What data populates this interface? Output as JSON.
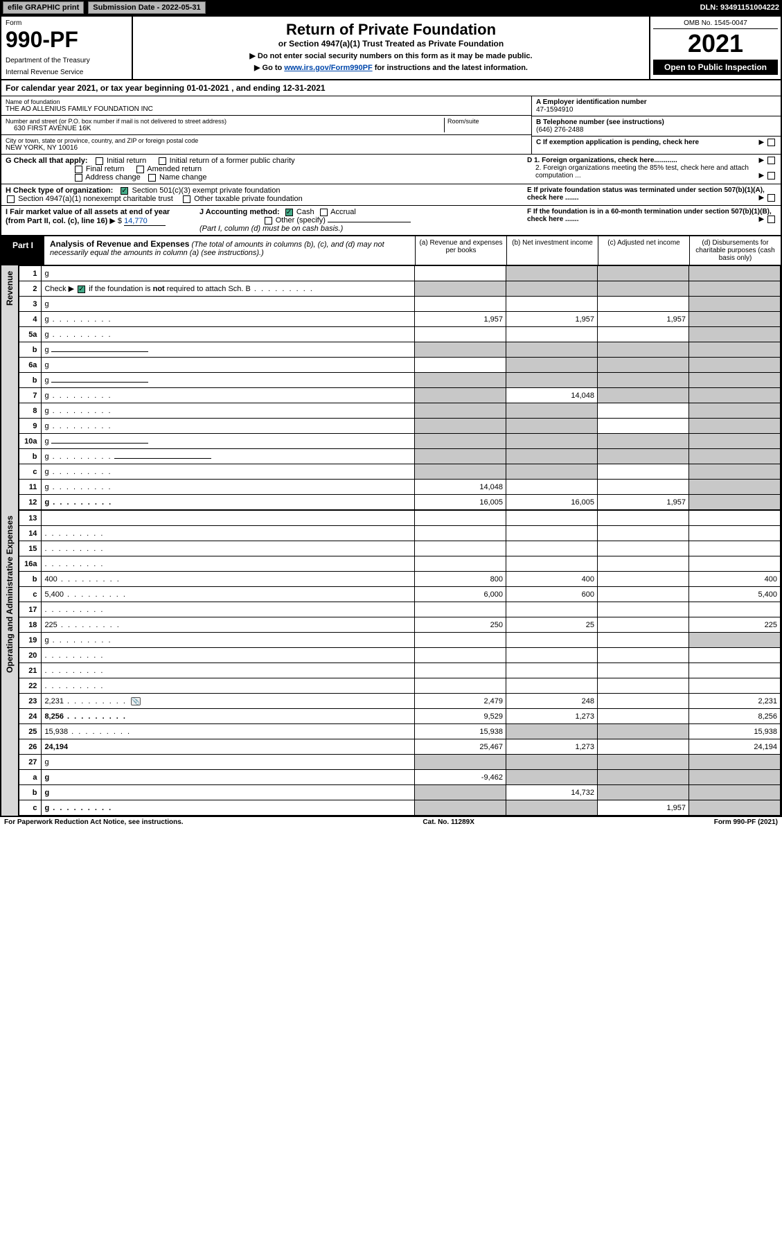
{
  "topbar": {
    "efile": "efile GRAPHIC print",
    "submission_label": "Submission Date - 2022-05-31",
    "dln": "DLN: 93491151004222"
  },
  "header": {
    "form_label": "Form",
    "form_number": "990-PF",
    "dept1": "Department of the Treasury",
    "dept2": "Internal Revenue Service",
    "title": "Return of Private Foundation",
    "subtitle": "or Section 4947(a)(1) Trust Treated as Private Foundation",
    "instr1": "▶ Do not enter social security numbers on this form as it may be made public.",
    "instr2_pre": "▶ Go to ",
    "instr2_link": "www.irs.gov/Form990PF",
    "instr2_post": " for instructions and the latest information.",
    "omb": "OMB No. 1545-0047",
    "year": "2021",
    "open": "Open to Public Inspection"
  },
  "cal_year": {
    "text_pre": "For calendar year 2021, or tax year beginning ",
    "begin": "01-01-2021",
    "mid": " , and ending ",
    "end": "12-31-2021"
  },
  "info": {
    "name_lbl": "Name of foundation",
    "name_val": "THE AO ALLENIUS FAMILY FOUNDATION INC",
    "addr_lbl": "Number and street (or P.O. box number if mail is not delivered to street address)",
    "addr_val": "630 FIRST AVENUE 16K",
    "room_lbl": "Room/suite",
    "city_lbl": "City or town, state or province, country, and ZIP or foreign postal code",
    "city_val": "NEW YORK, NY  10016",
    "a_title": "A Employer identification number",
    "a_val": "47-1594910",
    "b_title": "B Telephone number (see instructions)",
    "b_val": "(646) 276-2488",
    "c_title": "C If exemption application is pending, check here",
    "d1": "D 1. Foreign organizations, check here............",
    "d2": "2. Foreign organizations meeting the 85% test, check here and attach computation ...",
    "e": "E  If private foundation status was terminated under section 507(b)(1)(A), check here .......",
    "f": "F  If the foundation is in a 60-month termination under section 507(b)(1)(B), check here .......",
    "g_label": "G Check all that apply:",
    "g_opts": [
      "Initial return",
      "Initial return of a former public charity",
      "Final return",
      "Amended return",
      "Address change",
      "Name change"
    ],
    "h_label": "H Check type of organization:",
    "h_opt1": "Section 501(c)(3) exempt private foundation",
    "h_opt2": "Section 4947(a)(1) nonexempt charitable trust",
    "h_opt3": "Other taxable private foundation",
    "i_label": "I Fair market value of all assets at end of year (from Part II, col. (c), line 16)",
    "i_val": "14,770",
    "j_label": "J Accounting method:",
    "j_opts": [
      "Cash",
      "Accrual",
      "Other (specify)"
    ],
    "j_note": "(Part I, column (d) must be on cash basis.)"
  },
  "part1": {
    "label": "Part I",
    "title": "Analysis of Revenue and Expenses",
    "title_note": " (The total of amounts in columns (b), (c), and (d) may not necessarily equal the amounts in column (a) (see instructions).)",
    "col_a": "(a)   Revenue and expenses per books",
    "col_b": "(b)  Net investment income",
    "col_c": "(c)  Adjusted net income",
    "col_d": "(d)  Disbursements for charitable purposes (cash basis only)"
  },
  "side": {
    "revenue": "Revenue",
    "expenses": "Operating and Administrative Expenses"
  },
  "rows": [
    {
      "n": "1",
      "d": "g",
      "a": "",
      "b": "g",
      "c": "g"
    },
    {
      "n": "2",
      "d": "g",
      "dots": true,
      "a": "g",
      "b": "g",
      "c": "g",
      "checked": true
    },
    {
      "n": "3",
      "d": "g",
      "a": "",
      "b": "",
      "c": ""
    },
    {
      "n": "4",
      "d": "g",
      "dots": true,
      "a": "1,957",
      "b": "1,957",
      "c": "1,957"
    },
    {
      "n": "5a",
      "d": "g",
      "dots": true,
      "a": "",
      "b": "",
      "c": ""
    },
    {
      "n": "b",
      "d": "g",
      "underline": true,
      "a": "g",
      "b": "g",
      "c": "g"
    },
    {
      "n": "6a",
      "d": "g",
      "a": "",
      "b": "g",
      "c": "g"
    },
    {
      "n": "b",
      "d": "g",
      "underline": true,
      "a": "g",
      "b": "g",
      "c": "g"
    },
    {
      "n": "7",
      "d": "g",
      "dots": true,
      "a": "g",
      "b": "14,048",
      "c": "g"
    },
    {
      "n": "8",
      "d": "g",
      "dots": true,
      "a": "g",
      "b": "g",
      "c": ""
    },
    {
      "n": "9",
      "d": "g",
      "dots": true,
      "a": "g",
      "b": "g",
      "c": ""
    },
    {
      "n": "10a",
      "d": "g",
      "underline": true,
      "a": "g",
      "b": "g",
      "c": "g"
    },
    {
      "n": "b",
      "d": "g",
      "dots": true,
      "underline": true,
      "a": "g",
      "b": "g",
      "c": "g"
    },
    {
      "n": "c",
      "d": "g",
      "dots": true,
      "a": "g",
      "b": "g",
      "c": ""
    },
    {
      "n": "11",
      "d": "g",
      "dots": true,
      "a": "14,048",
      "b": "",
      "c": ""
    },
    {
      "n": "12",
      "d": "g",
      "dots": true,
      "bold": true,
      "a": "16,005",
      "b": "16,005",
      "c": "1,957"
    }
  ],
  "exp_rows": [
    {
      "n": "13",
      "d": "",
      "a": "",
      "b": "",
      "c": ""
    },
    {
      "n": "14",
      "d": "",
      "dots": true,
      "a": "",
      "b": "",
      "c": ""
    },
    {
      "n": "15",
      "d": "",
      "dots": true,
      "a": "",
      "b": "",
      "c": ""
    },
    {
      "n": "16a",
      "d": "",
      "dots": true,
      "a": "",
      "b": "",
      "c": ""
    },
    {
      "n": "b",
      "d": "400",
      "dots": true,
      "a": "800",
      "b": "400",
      "c": ""
    },
    {
      "n": "c",
      "d": "5,400",
      "dots": true,
      "a": "6,000",
      "b": "600",
      "c": ""
    },
    {
      "n": "17",
      "d": "",
      "dots": true,
      "a": "",
      "b": "",
      "c": ""
    },
    {
      "n": "18",
      "d": "225",
      "dots": true,
      "a": "250",
      "b": "25",
      "c": ""
    },
    {
      "n": "19",
      "d": "g",
      "dots": true,
      "a": "",
      "b": "",
      "c": ""
    },
    {
      "n": "20",
      "d": "",
      "dots": true,
      "a": "",
      "b": "",
      "c": ""
    },
    {
      "n": "21",
      "d": "",
      "dots": true,
      "a": "",
      "b": "",
      "c": ""
    },
    {
      "n": "22",
      "d": "",
      "dots": true,
      "a": "",
      "b": "",
      "c": ""
    },
    {
      "n": "23",
      "d": "2,231",
      "dots": true,
      "icon": true,
      "a": "2,479",
      "b": "248",
      "c": ""
    },
    {
      "n": "24",
      "d": "8,256",
      "dots": true,
      "bold": true,
      "a": "9,529",
      "b": "1,273",
      "c": ""
    },
    {
      "n": "25",
      "d": "15,938",
      "dots": true,
      "a": "15,938",
      "b": "g",
      "c": "g"
    },
    {
      "n": "26",
      "d": "24,194",
      "bold": true,
      "a": "25,467",
      "b": "1,273",
      "c": ""
    },
    {
      "n": "27",
      "d": "g",
      "a": "g",
      "b": "g",
      "c": "g"
    },
    {
      "n": "a",
      "d": "g",
      "bold": true,
      "a": "-9,462",
      "b": "g",
      "c": "g"
    },
    {
      "n": "b",
      "d": "g",
      "bold": true,
      "a": "g",
      "b": "14,732",
      "c": "g"
    },
    {
      "n": "c",
      "d": "g",
      "dots": true,
      "bold": true,
      "a": "g",
      "b": "g",
      "c": "1,957"
    }
  ],
  "footer": {
    "left": "For Paperwork Reduction Act Notice, see instructions.",
    "mid": "Cat. No. 11289X",
    "right": "Form 990-PF (2021)"
  }
}
